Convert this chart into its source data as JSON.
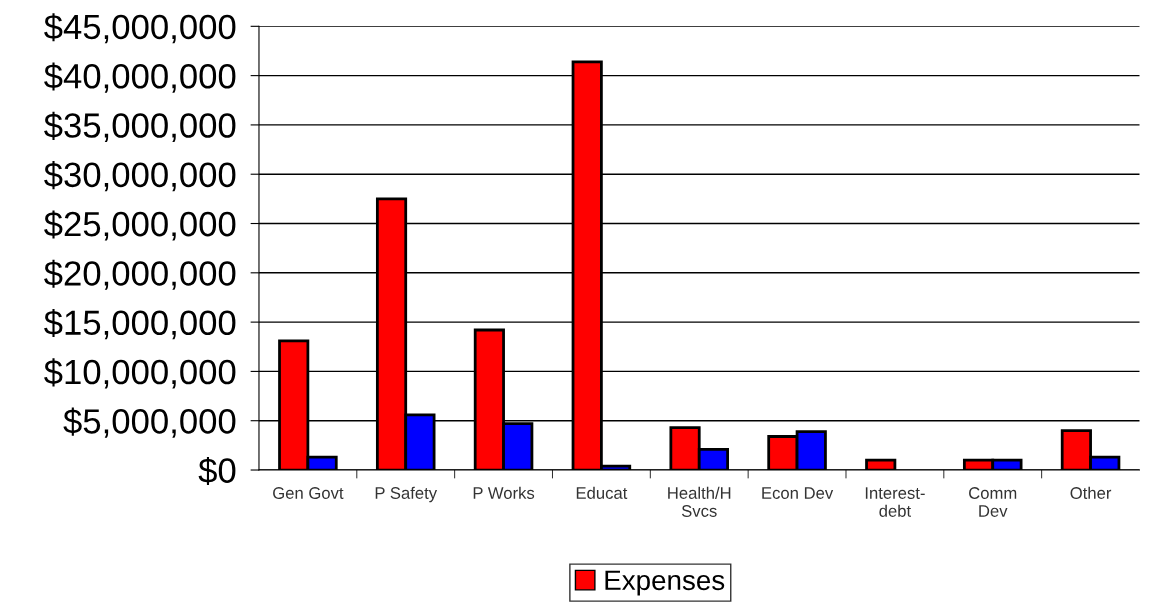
{
  "chart_data": {
    "type": "bar",
    "categories": [
      "Gen Govt",
      "P Safety",
      "P Works",
      "Educat",
      "Health/H\nSvcs",
      "Econ Dev",
      "Interest-\ndebt",
      "Comm\nDev",
      "Other"
    ],
    "series": [
      {
        "name": "Expenses",
        "color": "#ff0000",
        "values": [
          13100000,
          27500000,
          14200000,
          41400000,
          4300000,
          3400000,
          1000000,
          1000000,
          4000000
        ]
      },
      {
        "color": "#0000ff",
        "values": [
          1300000,
          5600000,
          4700000,
          400000,
          2100000,
          3900000,
          null,
          1000000,
          1300000
        ]
      }
    ],
    "ylim": [
      0,
      45000000
    ],
    "yticks": [
      {
        "value": 0,
        "label": "$0"
      },
      {
        "value": 5000000,
        "label": "$5,000,000"
      },
      {
        "value": 10000000,
        "label": "$10,000,000"
      },
      {
        "value": 15000000,
        "label": "$15,000,000"
      },
      {
        "value": 20000000,
        "label": "$20,000,000"
      },
      {
        "value": 25000000,
        "label": "$25,000,000"
      },
      {
        "value": 30000000,
        "label": "$30,000,000"
      },
      {
        "value": 35000000,
        "label": "$35,000,000"
      },
      {
        "value": 40000000,
        "label": "$40,000,000"
      },
      {
        "value": 45000000,
        "label": "$45,000,000"
      }
    ],
    "grid": "y",
    "legend": "bottom"
  }
}
